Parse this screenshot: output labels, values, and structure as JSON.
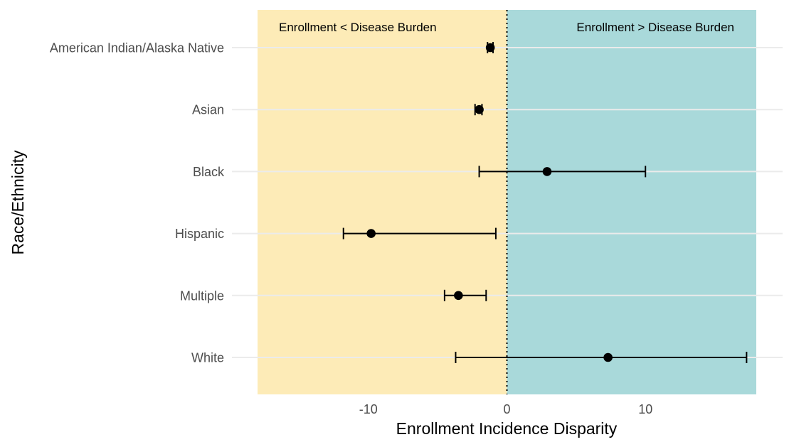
{
  "chart_data": {
    "type": "forest",
    "xlabel": "Enrollment Incidence Disparity",
    "ylabel": "Race/Ethnicity",
    "xlim": [
      -18,
      18
    ],
    "x_ticks": [
      -10,
      0,
      10
    ],
    "x_tick_labels": [
      "-10",
      "0",
      "10"
    ],
    "reference_line": {
      "x": 0,
      "style": "dotted"
    },
    "grid": "horizontal gridlines at each category",
    "regions": [
      {
        "label": "Enrollment < Disease Burden",
        "from": -18,
        "to": 0,
        "color": "#FDEBB7"
      },
      {
        "label": "Enrollment > Disease Burden",
        "from": 0,
        "to": 18,
        "color": "#A9D9DA"
      }
    ],
    "categories": [
      "American Indian/Alaska Native",
      "Asian",
      "Black",
      "Hispanic",
      "Multiple",
      "White"
    ],
    "points": [
      {
        "category": "American Indian/Alaska Native",
        "estimate": -1.2,
        "lower": -1.4,
        "upper": -1.0
      },
      {
        "category": "Asian",
        "estimate": -2.0,
        "lower": -2.3,
        "upper": -1.8
      },
      {
        "category": "Black",
        "estimate": 2.9,
        "lower": -2.0,
        "upper": 10.0
      },
      {
        "category": "Hispanic",
        "estimate": -9.8,
        "lower": -11.8,
        "upper": -0.8
      },
      {
        "category": "Multiple",
        "estimate": -3.5,
        "lower": -4.5,
        "upper": -1.5
      },
      {
        "category": "White",
        "estimate": 7.3,
        "lower": -3.7,
        "upper": 17.3
      }
    ],
    "colors": {
      "point": "#000000",
      "errorbar": "#000000",
      "gridline": "#ebebeb",
      "tick_text": "#4d4d4d"
    }
  }
}
